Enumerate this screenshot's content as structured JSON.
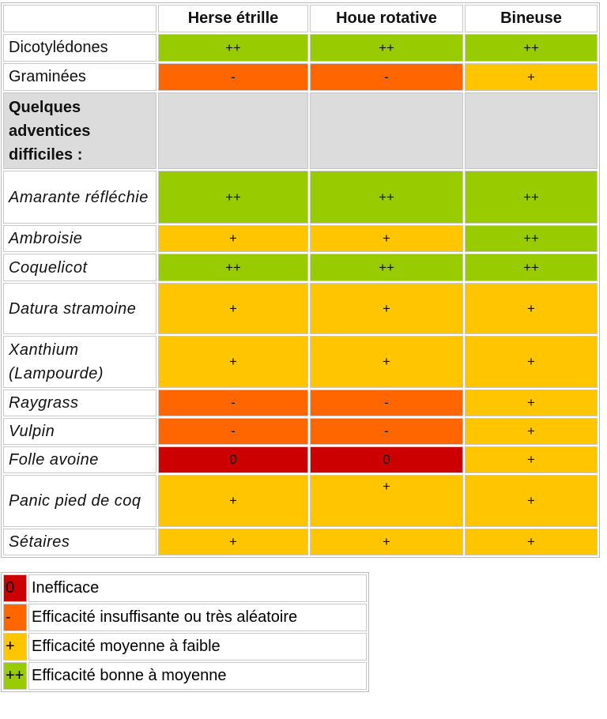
{
  "colors": {
    "green": "#99cc00",
    "orange": "#ff6600",
    "yellow": "#ffc600",
    "red": "#cc0000",
    "gray": "#dcdcdc"
  },
  "headers": [
    "Herse étrille",
    "Houe rotative",
    "Bineuse"
  ],
  "rows": [
    {
      "label": "Dicotylédones",
      "style": "normal",
      "values": [
        "++",
        "++",
        "++"
      ],
      "colors": [
        "green",
        "green",
        "green"
      ]
    },
    {
      "label": "Graminées",
      "style": "normal",
      "values": [
        "-",
        "-",
        "+"
      ],
      "colors": [
        "orange",
        "orange",
        "yellow"
      ]
    },
    {
      "label": "Quelques adventices difficiles :",
      "style": "bold",
      "values": [
        "",
        "",
        ""
      ],
      "colors": [
        "gray",
        "gray",
        "gray"
      ]
    },
    {
      "label": "Amarante réfléchie",
      "style": "italic",
      "values": [
        "++",
        "++",
        "++"
      ],
      "colors": [
        "green",
        "green",
        "green"
      ]
    },
    {
      "label": "Ambroisie",
      "style": "italic",
      "values": [
        "+",
        "+",
        "++"
      ],
      "colors": [
        "yellow",
        "yellow",
        "green"
      ]
    },
    {
      "label": "Coquelicot",
      "style": "italic",
      "values": [
        "++",
        "++",
        "++"
      ],
      "colors": [
        "green",
        "green",
        "green"
      ]
    },
    {
      "label": "Datura stramoine",
      "style": "italic",
      "values": [
        "+",
        "+",
        "+"
      ],
      "colors": [
        "yellow",
        "yellow",
        "yellow"
      ]
    },
    {
      "label": "Xanthium (Lampourde)",
      "style": "italic",
      "values": [
        "+",
        "+",
        "+"
      ],
      "colors": [
        "yellow",
        "yellow",
        "yellow"
      ]
    },
    {
      "label": "Raygrass",
      "style": "italic",
      "values": [
        "-",
        "-",
        "+"
      ],
      "colors": [
        "orange",
        "orange",
        "yellow"
      ]
    },
    {
      "label": "Vulpin",
      "style": "italic",
      "values": [
        "-",
        "-",
        "+"
      ],
      "colors": [
        "orange",
        "orange",
        "yellow"
      ]
    },
    {
      "label": "Folle avoine",
      "style": "italic",
      "values": [
        "0",
        "0",
        "+"
      ],
      "colors": [
        "red",
        "red",
        "yellow"
      ]
    },
    {
      "label": "Panic pied de coq",
      "style": "italic",
      "values": [
        "+",
        "+",
        "+"
      ],
      "colors": [
        "yellow",
        "yellow",
        "yellow"
      ]
    },
    {
      "label": "Sétaires",
      "style": "italic",
      "values": [
        "+",
        "+",
        "+"
      ],
      "colors": [
        "yellow",
        "yellow",
        "yellow"
      ]
    }
  ],
  "legend": [
    {
      "symbol": "0",
      "color": "red",
      "text": "Inefficace"
    },
    {
      "symbol": "-",
      "color": "orange",
      "text": "Efficacité insuffisante ou très aléatoire"
    },
    {
      "symbol": "+",
      "color": "yellow",
      "text": "Efficacité moyenne à faible"
    },
    {
      "symbol": "++",
      "color": "green",
      "text": "Efficacité bonne à moyenne"
    }
  ]
}
